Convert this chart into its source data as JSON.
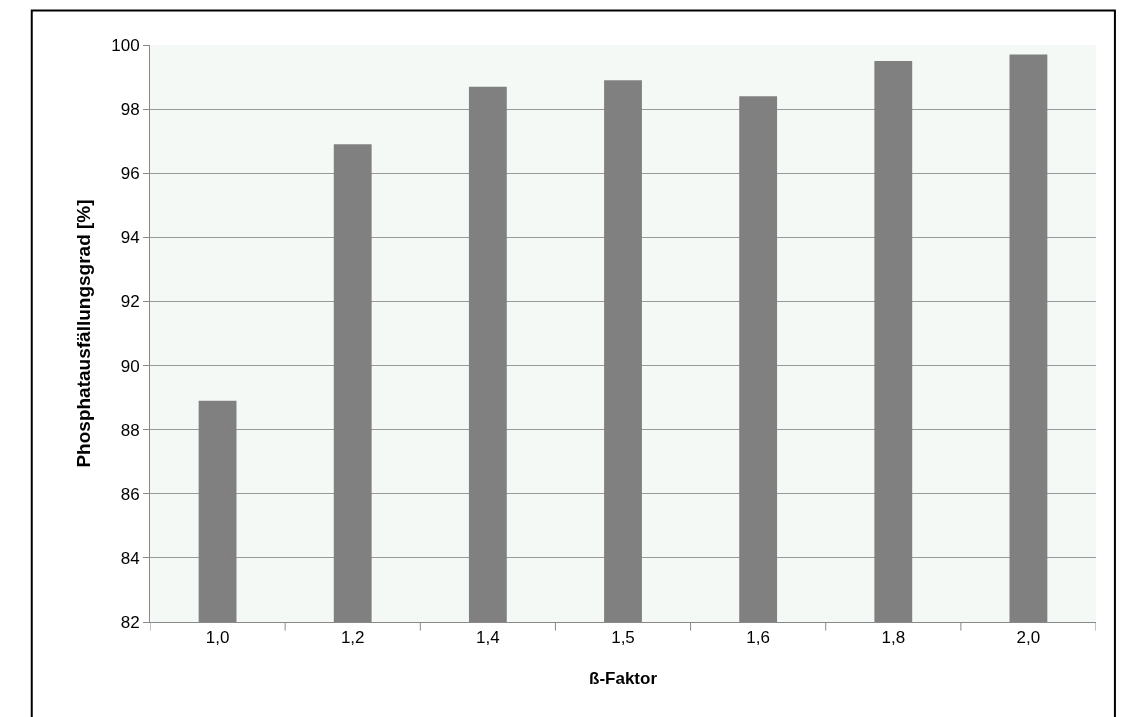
{
  "chart_data": {
    "type": "bar",
    "xlabel": "ß-Faktor",
    "ylabel": "Phosphatausfällungsgrad [%]",
    "categories": [
      "1,0",
      "1,2",
      "1,4",
      "1,5",
      "1,6",
      "1,8",
      "2,0"
    ],
    "values": [
      88.9,
      96.9,
      98.7,
      98.9,
      98.4,
      99.5,
      99.7
    ],
    "color": "#808080",
    "ylim": [
      82,
      100
    ],
    "yticks": [
      82,
      84,
      86,
      88,
      90,
      92,
      94,
      96,
      98,
      100
    ],
    "grid": "y",
    "legend": false
  }
}
